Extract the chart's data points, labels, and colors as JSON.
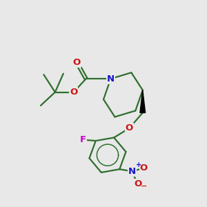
{
  "background_color": "#e8e8e8",
  "bond_color": "#2d6e2d",
  "bond_width": 1.6,
  "atom_colors": {
    "N": "#1414cc",
    "O": "#cc1414",
    "F": "#cc00cc",
    "C": "#2d6e2d",
    "NO2_N": "#1414cc",
    "NO2_O": "#cc1414"
  },
  "font_size": 9.5,
  "background": "#e8e8e8"
}
